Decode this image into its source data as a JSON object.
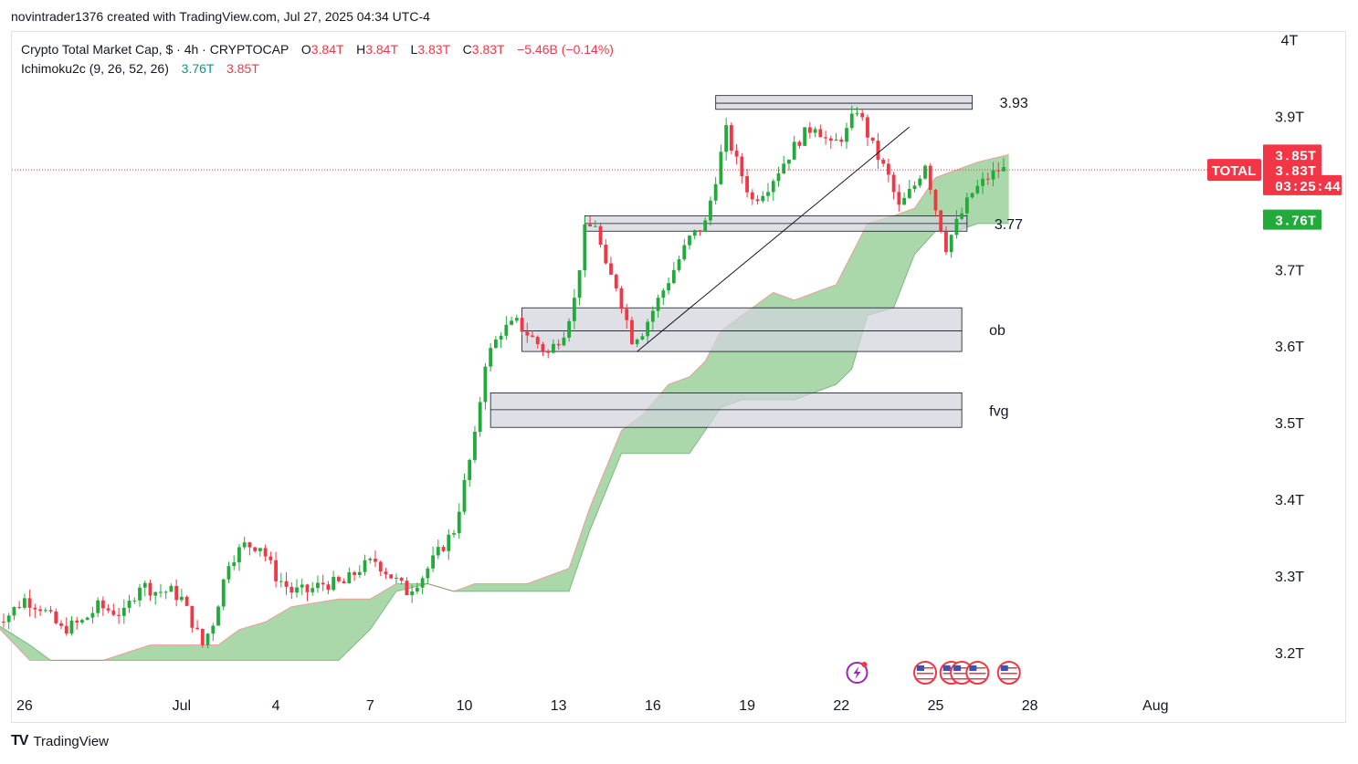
{
  "header": {
    "credit": "novintrader1376 created with TradingView.com, Jul 27, 2025 04:34 UTC-4"
  },
  "legend": {
    "symbol_line": "Crypto Total Market Cap, $ · 4h · CRYPTOCAP",
    "o_label": "O",
    "o_value": "3.84T",
    "h_label": "H",
    "h_value": "3.84T",
    "l_label": "L",
    "l_value": "3.83T",
    "c_label": "C",
    "c_value": "3.83T",
    "change": "−5.46B (−0.14%)",
    "indicator_name": "Ichimoku2c (9, 26, 52, 26)",
    "indicator_val1": "3.76T",
    "indicator_val2": "3.85T"
  },
  "footer": {
    "brand": "TradingView",
    "logo": "TV"
  },
  "colors": {
    "up": "#22ab3a",
    "down": "#f23645",
    "cloud": "#a5d6a7",
    "cloud_edge": "#ef9a9a",
    "price_line": "#f23645",
    "zone_fill": "#d1d4dc"
  },
  "chart_data": {
    "type": "candlestick",
    "symbol": "TOTAL",
    "timeframe": "4h",
    "y_unit": "T",
    "ylim": [
      3.15,
      4.01
    ],
    "y_ticks": [
      {
        "value": 4.0,
        "label": "4T"
      },
      {
        "value": 3.9,
        "label": "3.9T"
      },
      {
        "value": 3.7,
        "label": "3.7T"
      },
      {
        "value": 3.6,
        "label": "3.6T"
      },
      {
        "value": 3.5,
        "label": "3.5T"
      },
      {
        "value": 3.4,
        "label": "3.4T"
      },
      {
        "value": 3.3,
        "label": "3.3T"
      },
      {
        "value": 3.2,
        "label": "3.2T"
      }
    ],
    "x_range": [
      "2025-06-25",
      "2025-08-02"
    ],
    "x_ticks": [
      {
        "date": "2025-06-26",
        "label": "26"
      },
      {
        "date": "2025-07-01",
        "label": "Jul"
      },
      {
        "date": "2025-07-04",
        "label": "4"
      },
      {
        "date": "2025-07-07",
        "label": "7"
      },
      {
        "date": "2025-07-10",
        "label": "10"
      },
      {
        "date": "2025-07-13",
        "label": "13"
      },
      {
        "date": "2025-07-16",
        "label": "16"
      },
      {
        "date": "2025-07-19",
        "label": "19"
      },
      {
        "date": "2025-07-22",
        "label": "22"
      },
      {
        "date": "2025-07-25",
        "label": "25"
      },
      {
        "date": "2025-07-28",
        "label": "28"
      },
      {
        "date": "2025-08-01",
        "label": "Aug"
      }
    ],
    "price_path": [
      [
        "2025-06-25T00:00",
        3.24
      ],
      [
        "2025-06-25T16:00",
        3.25
      ],
      [
        "2025-06-26T04:00",
        3.27
      ],
      [
        "2025-06-26T16:00",
        3.26
      ],
      [
        "2025-06-27T08:00",
        3.23
      ],
      [
        "2025-06-28T00:00",
        3.24
      ],
      [
        "2025-06-28T12:00",
        3.26
      ],
      [
        "2025-06-29T08:00",
        3.25
      ],
      [
        "2025-06-29T20:00",
        3.29
      ],
      [
        "2025-06-30T08:00",
        3.28
      ],
      [
        "2025-06-30T20:00",
        3.28
      ],
      [
        "2025-07-01T04:00",
        3.27
      ],
      [
        "2025-07-01T12:00",
        3.24
      ],
      [
        "2025-07-01T20:00",
        3.21
      ],
      [
        "2025-07-02T04:00",
        3.24
      ],
      [
        "2025-07-02T16:00",
        3.32
      ],
      [
        "2025-07-03T04:00",
        3.34
      ],
      [
        "2025-07-03T16:00",
        3.34
      ],
      [
        "2025-07-04T04:00",
        3.3
      ],
      [
        "2025-07-04T16:00",
        3.28
      ],
      [
        "2025-07-05T04:00",
        3.28
      ],
      [
        "2025-07-05T16:00",
        3.29
      ],
      [
        "2025-07-06T08:00",
        3.29
      ],
      [
        "2025-07-06T20:00",
        3.31
      ],
      [
        "2025-07-07T08:00",
        3.32
      ],
      [
        "2025-07-07T20:00",
        3.3
      ],
      [
        "2025-07-08T08:00",
        3.28
      ],
      [
        "2025-07-08T20:00",
        3.3
      ],
      [
        "2025-07-09T08:00",
        3.33
      ],
      [
        "2025-07-09T20:00",
        3.36
      ],
      [
        "2025-07-10T04:00",
        3.42
      ],
      [
        "2025-07-10T12:00",
        3.48
      ],
      [
        "2025-07-10T20:00",
        3.58
      ],
      [
        "2025-07-11T08:00",
        3.62
      ],
      [
        "2025-07-11T20:00",
        3.63
      ],
      [
        "2025-07-12T08:00",
        3.61
      ],
      [
        "2025-07-12T20:00",
        3.59
      ],
      [
        "2025-07-13T08:00",
        3.62
      ],
      [
        "2025-07-13T16:00",
        3.66
      ],
      [
        "2025-07-14T00:00",
        3.75
      ],
      [
        "2025-07-14T08:00",
        3.76
      ],
      [
        "2025-07-14T16:00",
        3.7
      ],
      [
        "2025-07-15T00:00",
        3.68
      ],
      [
        "2025-07-15T12:00",
        3.61
      ],
      [
        "2025-07-15T20:00",
        3.62
      ],
      [
        "2025-07-16T08:00",
        3.66
      ],
      [
        "2025-07-16T20:00",
        3.7
      ],
      [
        "2025-07-17T08:00",
        3.74
      ],
      [
        "2025-07-17T20:00",
        3.76
      ],
      [
        "2025-07-18T04:00",
        3.82
      ],
      [
        "2025-07-18T12:00",
        3.88
      ],
      [
        "2025-07-18T20:00",
        3.84
      ],
      [
        "2025-07-19T08:00",
        3.79
      ],
      [
        "2025-07-19T20:00",
        3.81
      ],
      [
        "2025-07-20T08:00",
        3.84
      ],
      [
        "2025-07-20T20:00",
        3.87
      ],
      [
        "2025-07-21T08:00",
        3.89
      ],
      [
        "2025-07-21T20:00",
        3.86
      ],
      [
        "2025-07-22T08:00",
        3.88
      ],
      [
        "2025-07-22T16:00",
        3.91
      ],
      [
        "2025-07-23T04:00",
        3.86
      ],
      [
        "2025-07-23T16:00",
        3.82
      ],
      [
        "2025-07-24T00:00",
        3.78
      ],
      [
        "2025-07-24T12:00",
        3.81
      ],
      [
        "2025-07-24T20:00",
        3.84
      ],
      [
        "2025-07-25T04:00",
        3.78
      ],
      [
        "2025-07-25T12:00",
        3.73
      ],
      [
        "2025-07-25T20:00",
        3.76
      ],
      [
        "2025-07-26T08:00",
        3.8
      ],
      [
        "2025-07-26T20:00",
        3.82
      ],
      [
        "2025-07-27T04:00",
        3.83
      ]
    ],
    "ichimoku_cloud": {
      "upper": [
        [
          "2025-06-25T00:00",
          3.24
        ],
        [
          "2025-06-26T04:00",
          3.19
        ],
        [
          "2025-06-26T20:00",
          3.19
        ],
        [
          "2025-06-28T12:00",
          3.19
        ],
        [
          "2025-06-30T00:00",
          3.21
        ],
        [
          "2025-07-01T12:00",
          3.21
        ],
        [
          "2025-07-02T04:00",
          3.21
        ],
        [
          "2025-07-02T20:00",
          3.23
        ],
        [
          "2025-07-03T16:00",
          3.24
        ],
        [
          "2025-07-04T12:00",
          3.26
        ],
        [
          "2025-07-06T00:00",
          3.27
        ],
        [
          "2025-07-07T00:00",
          3.27
        ],
        [
          "2025-07-07T20:00",
          3.29
        ],
        [
          "2025-07-08T20:00",
          3.29
        ],
        [
          "2025-07-09T16:00",
          3.28
        ],
        [
          "2025-07-10T08:00",
          3.29
        ],
        [
          "2025-07-12T00:00",
          3.29
        ],
        [
          "2025-07-13T08:00",
          3.31
        ],
        [
          "2025-07-14T00:00",
          3.39
        ],
        [
          "2025-07-14T12:00",
          3.44
        ],
        [
          "2025-07-15T00:00",
          3.49
        ],
        [
          "2025-07-15T16:00",
          3.51
        ],
        [
          "2025-07-16T12:00",
          3.55
        ],
        [
          "2025-07-17T04:00",
          3.56
        ],
        [
          "2025-07-17T16:00",
          3.58
        ],
        [
          "2025-07-18T04:00",
          3.62
        ],
        [
          "2025-07-18T20:00",
          3.64
        ],
        [
          "2025-07-19T20:00",
          3.67
        ],
        [
          "2025-07-20T12:00",
          3.66
        ],
        [
          "2025-07-21T04:00",
          3.67
        ],
        [
          "2025-07-21T20:00",
          3.68
        ],
        [
          "2025-07-22T08:00",
          3.72
        ],
        [
          "2025-07-22T20:00",
          3.76
        ],
        [
          "2025-07-23T16:00",
          3.77
        ],
        [
          "2025-07-24T08:00",
          3.78
        ],
        [
          "2025-07-25T00:00",
          3.82
        ],
        [
          "2025-07-25T16:00",
          3.83
        ],
        [
          "2025-07-26T08:00",
          3.84
        ],
        [
          "2025-07-27T08:00",
          3.85
        ]
      ],
      "lower": [
        [
          "2025-06-25T00:00",
          3.24
        ],
        [
          "2025-06-26T04:00",
          3.21
        ],
        [
          "2025-06-26T20:00",
          3.19
        ],
        [
          "2025-06-28T12:00",
          3.19
        ],
        [
          "2025-06-30T00:00",
          3.19
        ],
        [
          "2025-07-01T12:00",
          3.19
        ],
        [
          "2025-07-02T04:00",
          3.19
        ],
        [
          "2025-07-02T20:00",
          3.19
        ],
        [
          "2025-07-03T16:00",
          3.19
        ],
        [
          "2025-07-04T12:00",
          3.19
        ],
        [
          "2025-07-06T00:00",
          3.19
        ],
        [
          "2025-07-07T00:00",
          3.23
        ],
        [
          "2025-07-07T20:00",
          3.28
        ],
        [
          "2025-07-08T20:00",
          3.29
        ],
        [
          "2025-07-09T16:00",
          3.28
        ],
        [
          "2025-07-10T08:00",
          3.28
        ],
        [
          "2025-07-12T00:00",
          3.28
        ],
        [
          "2025-07-13T08:00",
          3.28
        ],
        [
          "2025-07-14T00:00",
          3.36
        ],
        [
          "2025-07-14T12:00",
          3.41
        ],
        [
          "2025-07-15T00:00",
          3.46
        ],
        [
          "2025-07-15T16:00",
          3.46
        ],
        [
          "2025-07-16T12:00",
          3.46
        ],
        [
          "2025-07-17T04:00",
          3.46
        ],
        [
          "2025-07-17T16:00",
          3.49
        ],
        [
          "2025-07-18T04:00",
          3.52
        ],
        [
          "2025-07-18T20:00",
          3.53
        ],
        [
          "2025-07-19T20:00",
          3.53
        ],
        [
          "2025-07-20T12:00",
          3.53
        ],
        [
          "2025-07-21T04:00",
          3.54
        ],
        [
          "2025-07-21T20:00",
          3.55
        ],
        [
          "2025-07-22T08:00",
          3.57
        ],
        [
          "2025-07-22T20:00",
          3.64
        ],
        [
          "2025-07-23T16:00",
          3.65
        ],
        [
          "2025-07-24T08:00",
          3.72
        ],
        [
          "2025-07-25T00:00",
          3.75
        ],
        [
          "2025-07-25T16:00",
          3.75
        ],
        [
          "2025-07-26T08:00",
          3.76
        ],
        [
          "2025-07-27T08:00",
          3.76
        ]
      ]
    },
    "zones": [
      {
        "label": "3.93",
        "from": "2025-07-18T00:00",
        "to": "2025-07-26T04:00",
        "y_top": 3.927,
        "y_mid": 3.917,
        "y_bottom": 3.909
      },
      {
        "label": "3.77",
        "from": "2025-07-13T20:00",
        "to": "2025-07-26T00:00",
        "y_top": 3.77,
        "y_mid": 3.76,
        "y_bottom": 3.75
      },
      {
        "label": "ob",
        "from": "2025-07-11T20:00",
        "to": "2025-07-25T20:00",
        "y_top": 3.65,
        "y_mid": 3.62,
        "y_bottom": 3.593
      },
      {
        "label": "fvg",
        "from": "2025-07-10T20:00",
        "to": "2025-07-25T20:00",
        "y_top": 3.539,
        "y_mid": 3.517,
        "y_bottom": 3.494
      }
    ],
    "trendline": {
      "from": [
        "2025-07-15T12:00",
        3.593
      ],
      "to": [
        "2025-07-24T04:00",
        3.886
      ]
    },
    "last_price": 3.83,
    "price_tags": [
      {
        "text": "3.85T",
        "value": 3.85,
        "color": "#f23645"
      },
      {
        "text": "3.83T",
        "value": 3.83,
        "color": "#f23645"
      },
      {
        "text": "03:25:44",
        "value": 3.81,
        "color": "#f23645"
      },
      {
        "text": "3.76T",
        "value": 3.765,
        "color": "#22ab3a"
      }
    ],
    "symbol_tag": {
      "text": "TOTAL",
      "color": "#f23645"
    },
    "event_markers": [
      {
        "date": "2025-07-22T12:00",
        "icon": "lightning-event-icon"
      },
      {
        "date": "2025-07-24T16:00",
        "icon": "us-flag-event-icon"
      },
      {
        "date": "2025-07-25T12:00",
        "icon": "us-flag-event-icon"
      },
      {
        "date": "2025-07-25T20:00",
        "icon": "us-flag-event-icon"
      },
      {
        "date": "2025-07-26T08:00",
        "icon": "us-flag-event-icon"
      },
      {
        "date": "2025-07-27T08:00",
        "icon": "us-flag-event-icon"
      }
    ]
  }
}
